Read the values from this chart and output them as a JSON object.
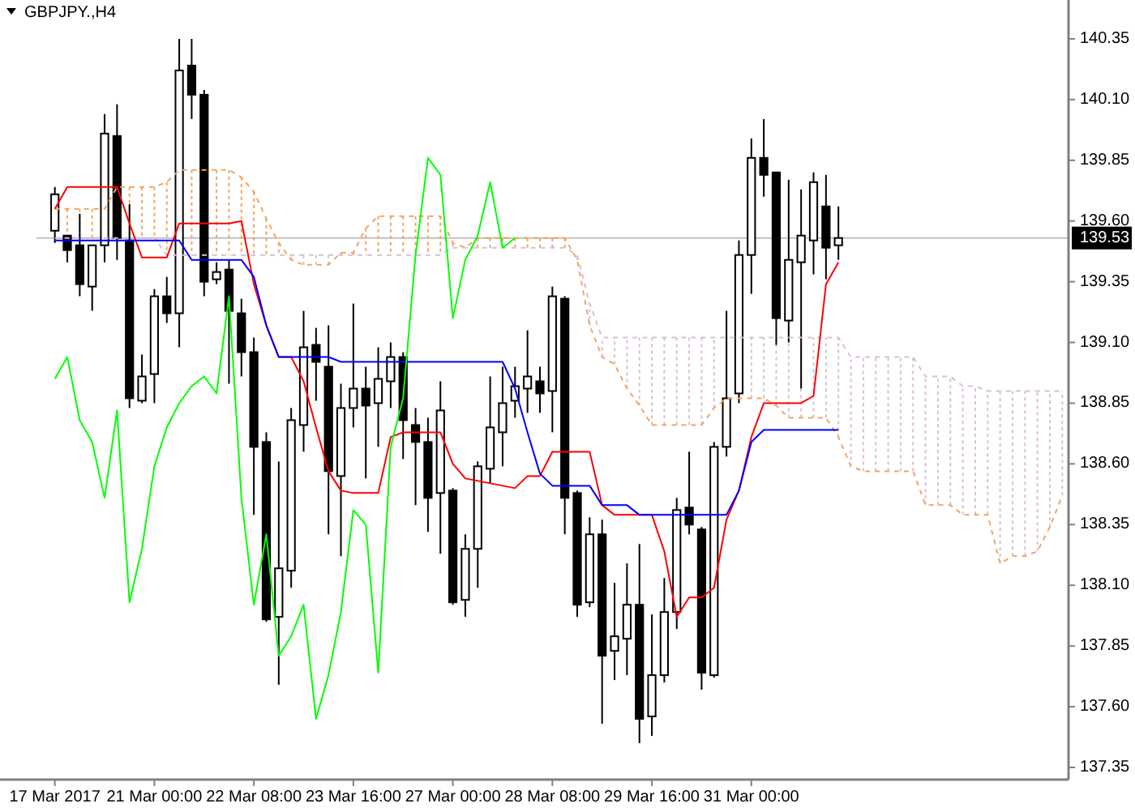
{
  "chart_data": {
    "type": "candlestick",
    "title": "GBPJPY.,H4",
    "categories": [
      "17 Mar 2017",
      null,
      null,
      null,
      null,
      null,
      null,
      null,
      "21 Mar 00:00",
      null,
      null,
      null,
      null,
      null,
      null,
      null,
      "22 Mar 08:00",
      null,
      null,
      null,
      null,
      null,
      null,
      null,
      "23 Mar 16:00",
      null,
      null,
      null,
      null,
      null,
      null,
      null,
      "27 Mar 00:00",
      null,
      null,
      null,
      null,
      null,
      null,
      null,
      "28 Mar 08:00",
      null,
      null,
      null,
      null,
      null,
      null,
      null,
      "29 Mar 16:00",
      null,
      null,
      null,
      null,
      null,
      null,
      null,
      "31 Mar 00:00",
      null,
      null,
      null,
      null,
      null,
      null,
      null,
      null,
      null,
      null,
      null,
      null,
      null,
      null,
      null,
      null,
      null,
      null,
      null,
      null,
      null,
      null,
      null,
      null,
      null
    ],
    "ohlc": [
      [
        139.56,
        139.74,
        139.51,
        139.71
      ],
      [
        139.54,
        139.54,
        139.43,
        139.48
      ],
      [
        139.5,
        139.63,
        139.29,
        139.34
      ],
      [
        139.33,
        139.5,
        139.23,
        139.5
      ],
      [
        139.5,
        140.04,
        139.43,
        139.96
      ],
      [
        139.95,
        140.08,
        139.44,
        139.53
      ],
      [
        139.52,
        139.67,
        138.83,
        138.87
      ],
      [
        138.86,
        139.05,
        138.85,
        138.96
      ],
      [
        138.97,
        139.32,
        138.85,
        139.29
      ],
      [
        139.29,
        139.37,
        139.18,
        139.22
      ],
      [
        139.22,
        140.35,
        139.08,
        140.22
      ],
      [
        140.24,
        140.35,
        140.02,
        140.12
      ],
      [
        140.12,
        140.14,
        139.29,
        139.35
      ],
      [
        139.36,
        139.43,
        139.34,
        139.39
      ],
      [
        139.4,
        139.44,
        138.93,
        139.23
      ],
      [
        139.22,
        139.28,
        138.96,
        139.06
      ],
      [
        139.06,
        139.12,
        138.39,
        138.67
      ],
      [
        138.69,
        138.73,
        137.95,
        137.96
      ],
      [
        137.97,
        138.61,
        137.69,
        138.17
      ],
      [
        138.16,
        138.83,
        138.09,
        138.78
      ],
      [
        138.76,
        139.23,
        138.65,
        139.08
      ],
      [
        139.09,
        139.16,
        138.86,
        139.02
      ],
      [
        139.0,
        139.17,
        138.31,
        138.57
      ],
      [
        138.55,
        138.93,
        138.22,
        138.83
      ],
      [
        138.83,
        139.26,
        138.75,
        138.91
      ],
      [
        138.91,
        139.0,
        138.54,
        138.84
      ],
      [
        138.85,
        139.08,
        138.67,
        138.95
      ],
      [
        138.94,
        139.1,
        138.83,
        139.04
      ],
      [
        139.04,
        139.06,
        138.62,
        138.78
      ],
      [
        138.76,
        138.83,
        138.43,
        138.69
      ],
      [
        138.69,
        138.79,
        138.32,
        138.46
      ],
      [
        138.48,
        138.94,
        138.23,
        138.82
      ],
      [
        138.49,
        138.5,
        138.02,
        138.03
      ],
      [
        138.04,
        138.31,
        137.97,
        138.25
      ],
      [
        138.25,
        138.61,
        138.09,
        138.59
      ],
      [
        138.58,
        138.96,
        138.52,
        138.75
      ],
      [
        138.73,
        139.0,
        138.59,
        138.85
      ],
      [
        138.86,
        139.0,
        138.79,
        138.92
      ],
      [
        138.91,
        139.15,
        138.81,
        138.96
      ],
      [
        138.94,
        139.0,
        138.81,
        138.89
      ],
      [
        138.9,
        139.33,
        138.73,
        139.29
      ],
      [
        139.28,
        139.29,
        138.31,
        138.46
      ],
      [
        138.48,
        138.49,
        137.97,
        138.02
      ],
      [
        138.03,
        138.38,
        138.01,
        138.31
      ],
      [
        138.31,
        138.37,
        137.53,
        137.81
      ],
      [
        137.83,
        138.11,
        137.71,
        137.89
      ],
      [
        137.88,
        138.19,
        137.73,
        138.02
      ],
      [
        138.02,
        138.27,
        137.45,
        137.55
      ],
      [
        137.56,
        137.98,
        137.48,
        137.73
      ],
      [
        137.73,
        138.13,
        137.7,
        137.99
      ],
      [
        137.99,
        138.46,
        137.92,
        138.41
      ],
      [
        138.42,
        138.65,
        138.31,
        138.35
      ],
      [
        138.33,
        138.34,
        137.67,
        137.74
      ],
      [
        137.73,
        138.69,
        137.72,
        138.67
      ],
      [
        138.67,
        139.23,
        138.63,
        138.87
      ],
      [
        138.89,
        139.52,
        138.85,
        139.46
      ],
      [
        139.46,
        139.94,
        139.3,
        139.86
      ],
      [
        139.86,
        140.02,
        139.7,
        139.79
      ],
      [
        139.8,
        139.8,
        139.09,
        139.2
      ],
      [
        139.19,
        139.77,
        139.1,
        139.44
      ],
      [
        139.43,
        139.73,
        138.91,
        139.54
      ],
      [
        139.52,
        139.8,
        139.38,
        139.76
      ],
      [
        139.66,
        139.79,
        139.36,
        139.49
      ],
      [
        139.5,
        139.66,
        139.44,
        139.53
      ],
      null,
      null,
      null,
      null,
      null,
      null,
      null,
      null,
      null,
      null,
      null,
      null,
      null,
      null,
      null,
      null,
      null,
      null
    ],
    "series": [
      {
        "type": "line",
        "line_style": "dashed",
        "color": "#f4a460",
        "values": [
          139.65,
          139.65,
          139.65,
          139.65,
          139.65,
          139.74,
          139.74,
          139.74,
          139.74,
          139.76,
          139.81,
          139.81,
          139.81,
          139.81,
          139.81,
          139.78,
          139.72,
          139.61,
          139.51,
          139.44,
          139.42,
          139.42,
          139.42,
          139.47,
          139.47,
          139.57,
          139.62,
          139.62,
          139.62,
          139.62,
          139.62,
          139.62,
          139.51,
          139.49,
          139.53,
          139.53,
          139.53,
          139.53,
          139.53,
          139.53,
          139.53,
          139.53,
          139.44,
          139.17,
          139.04,
          139.01,
          138.91,
          138.84,
          138.76,
          138.76,
          138.76,
          138.76,
          138.76,
          138.83,
          138.87,
          138.87,
          138.87,
          138.87,
          138.84,
          138.79,
          138.79,
          138.79,
          138.79,
          138.71,
          138.59,
          138.57,
          138.57,
          138.57,
          138.57,
          138.57,
          138.43,
          138.43,
          138.43,
          138.39,
          138.39,
          138.39,
          138.19,
          138.22,
          138.22,
          138.24,
          138.34,
          138.47
        ]
      },
      {
        "type": "line",
        "line_style": "dashed",
        "color": "#d8bfd8",
        "values": [
          139.53,
          139.53,
          139.53,
          139.53,
          139.53,
          139.53,
          139.53,
          139.53,
          139.53,
          139.46,
          139.46,
          139.46,
          139.46,
          139.46,
          139.46,
          139.46,
          139.46,
          139.46,
          139.46,
          139.46,
          139.46,
          139.46,
          139.46,
          139.46,
          139.46,
          139.46,
          139.46,
          139.46,
          139.46,
          139.46,
          139.46,
          139.46,
          139.49,
          139.49,
          139.49,
          139.49,
          139.49,
          139.49,
          139.49,
          139.49,
          139.49,
          139.49,
          139.46,
          139.26,
          139.12,
          139.12,
          139.12,
          139.12,
          139.12,
          139.12,
          139.12,
          139.12,
          139.12,
          139.12,
          139.12,
          139.12,
          139.12,
          139.12,
          139.12,
          139.12,
          139.12,
          139.12,
          139.12,
          139.12,
          139.04,
          139.04,
          139.04,
          139.04,
          139.04,
          139.04,
          138.96,
          138.96,
          138.96,
          138.92,
          138.92,
          138.9,
          138.9,
          138.9,
          138.9,
          138.9,
          138.9,
          138.9
        ]
      },
      {
        "type": "line",
        "color": "#ff0000",
        "values": [
          139.65,
          139.74,
          139.74,
          139.74,
          139.74,
          139.74,
          139.59,
          139.45,
          139.45,
          139.45,
          139.59,
          139.59,
          139.59,
          139.59,
          139.59,
          139.6,
          139.34,
          139.17,
          139.04,
          139.04,
          138.94,
          138.75,
          138.57,
          138.49,
          138.48,
          138.48,
          138.48,
          138.71,
          138.73,
          138.73,
          138.73,
          138.73,
          138.6,
          138.54,
          138.53,
          138.52,
          138.51,
          138.5,
          138.55,
          138.55,
          138.65,
          138.65,
          138.65,
          138.65,
          138.43,
          138.39,
          138.39,
          138.39,
          138.39,
          138.24,
          137.97,
          138.05,
          138.05,
          138.09,
          138.37,
          138.49,
          138.71,
          138.85,
          138.85,
          138.85,
          138.85,
          138.88,
          139.34,
          139.43,
          null,
          null,
          null,
          null,
          null,
          null,
          null,
          null,
          null,
          null,
          null,
          null,
          null,
          null,
          null,
          null,
          null,
          null
        ]
      },
      {
        "type": "line",
        "color": "#0000ff",
        "values": [
          139.52,
          139.52,
          139.52,
          139.52,
          139.52,
          139.52,
          139.52,
          139.52,
          139.52,
          139.52,
          139.52,
          139.44,
          139.44,
          139.44,
          139.44,
          139.44,
          139.37,
          139.17,
          139.04,
          139.04,
          139.04,
          139.04,
          139.04,
          139.02,
          139.02,
          139.02,
          139.02,
          139.02,
          139.02,
          139.02,
          139.02,
          139.02,
          139.02,
          139.02,
          139.02,
          139.02,
          139.02,
          138.91,
          138.73,
          138.56,
          138.51,
          138.51,
          138.51,
          138.51,
          138.43,
          138.43,
          138.43,
          138.39,
          138.39,
          138.39,
          138.39,
          138.39,
          138.39,
          138.39,
          138.39,
          138.49,
          138.69,
          138.74,
          138.74,
          138.74,
          138.74,
          138.74,
          138.74,
          138.74,
          null,
          null,
          null,
          null,
          null,
          null,
          null,
          null,
          null,
          null,
          null,
          null,
          null,
          null,
          null,
          null,
          null,
          null
        ]
      },
      {
        "type": "line",
        "color": "#00ff00",
        "values": [
          138.95,
          139.04,
          138.78,
          138.69,
          138.46,
          138.82,
          138.03,
          138.25,
          138.59,
          138.75,
          138.85,
          138.92,
          138.96,
          138.89,
          139.29,
          138.46,
          138.02,
          138.31,
          137.81,
          137.89,
          138.02,
          137.55,
          137.73,
          137.99,
          138.41,
          138.35,
          137.74,
          138.67,
          138.87,
          139.46,
          139.86,
          139.79,
          139.2,
          139.44,
          139.54,
          139.76,
          139.49,
          139.53,
          null,
          null,
          null,
          null,
          null,
          null,
          null,
          null,
          null,
          null,
          null,
          null,
          null,
          null,
          null,
          null,
          null,
          null,
          null,
          null,
          null,
          null,
          null,
          null,
          null,
          null,
          null,
          null,
          null,
          null,
          null,
          null,
          null,
          null,
          null,
          null,
          null,
          null,
          null,
          null,
          null,
          null,
          null,
          null
        ]
      }
    ],
    "ylim": [
      137.3,
      140.51
    ],
    "yticks": [
      137.35,
      {
        "value": 137.6,
        "label": "137.60"
      },
      137.85,
      {
        "value": 138.1,
        "label": "138.10"
      },
      138.35,
      {
        "value": 138.6,
        "label": "138.60"
      },
      138.85,
      {
        "value": 139.1,
        "label": "139.10"
      },
      139.35,
      {
        "value": 139.6,
        "label": "139.60"
      },
      139.85,
      {
        "value": 140.1,
        "label": "140.10"
      },
      140.35
    ],
    "ref_lines": [
      {
        "axis": "y",
        "value": 139.53,
        "label": "139.53",
        "color": "#c0c0c0"
      }
    ]
  }
}
